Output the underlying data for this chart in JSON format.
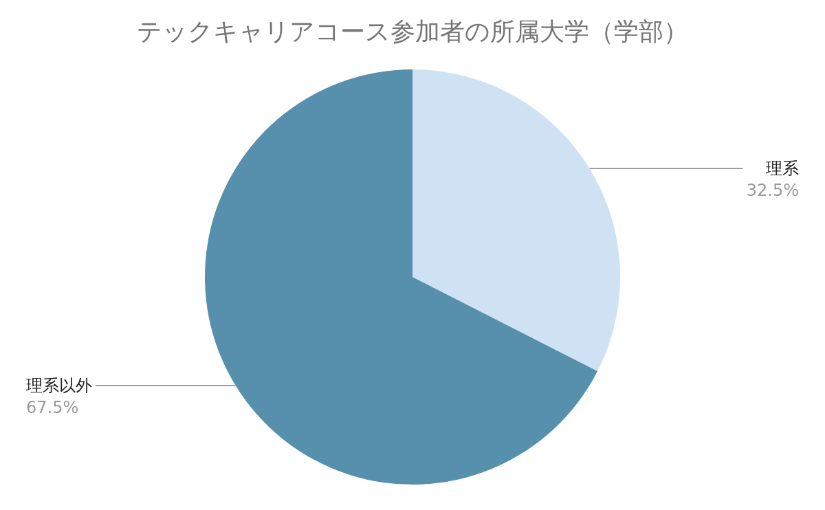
{
  "chart_data": {
    "type": "pie",
    "title": "テックキャリアコース参加者の所属大学（学部）",
    "categories": [
      "理系",
      "理系以外"
    ],
    "values": [
      32.5,
      67.5
    ],
    "value_labels": [
      "32.5%",
      "67.5%"
    ],
    "colors": [
      "#cfe2f3",
      "#5790ad"
    ]
  }
}
